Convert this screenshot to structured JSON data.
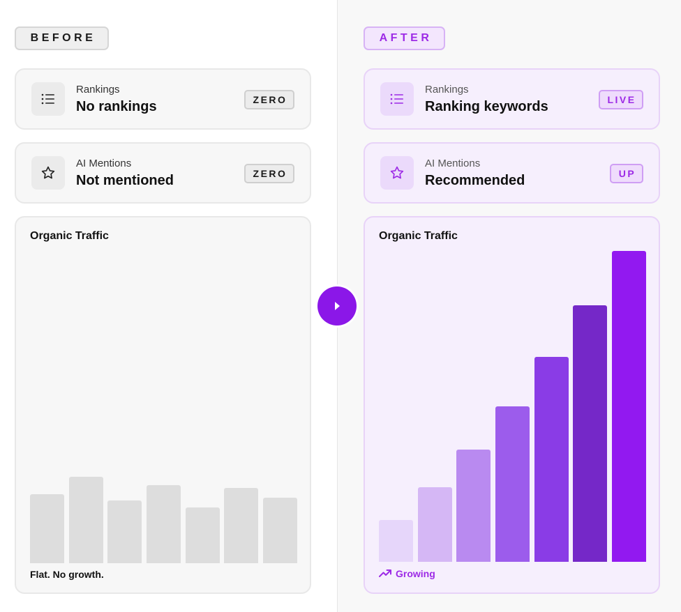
{
  "before": {
    "tag": "BEFORE",
    "cards": [
      {
        "sub": "Rankings",
        "main": "No rankings",
        "badge": "ZERO",
        "icon": "list-icon"
      },
      {
        "sub": "AI Mentions",
        "main": "Not mentioned",
        "badge": "ZERO",
        "icon": "star-icon"
      }
    ],
    "traffic": {
      "title": "Organic Traffic",
      "caption": "Flat. No growth."
    }
  },
  "after": {
    "tag": "AFTER",
    "cards": [
      {
        "sub": "Rankings",
        "main": "Ranking keywords",
        "badge": "LIVE",
        "icon": "list-icon"
      },
      {
        "sub": "AI Mentions",
        "main": "Recommended",
        "badge": "UP",
        "icon": "star-icon"
      }
    ],
    "traffic": {
      "title": "Organic Traffic",
      "caption": "Growing",
      "caption_icon": "trend-up-icon"
    }
  },
  "divider_icon": "play-arrow-icon",
  "colors": {
    "accent": "#8b17e8",
    "accent_text": "#9d2ae6",
    "before_bar": "#dddddd"
  },
  "chart_data": [
    {
      "type": "bar",
      "title": "Organic Traffic",
      "values": [
        0.72,
        0.9,
        0.65,
        0.81,
        0.58,
        0.78,
        0.68
      ],
      "colors": [
        "#dddddd",
        "#dddddd",
        "#dddddd",
        "#dddddd",
        "#dddddd",
        "#dddddd",
        "#dddddd"
      ]
    },
    {
      "type": "bar",
      "title": "Organic Traffic",
      "values": [
        0.135,
        0.24,
        0.36,
        0.5,
        0.66,
        0.825,
        1.0
      ],
      "colors": [
        "#e6d6fa",
        "#d5b7f5",
        "#b98af0",
        "#9c5cec",
        "#8a3ce6",
        "#7528c8",
        "#9219f0"
      ]
    }
  ]
}
